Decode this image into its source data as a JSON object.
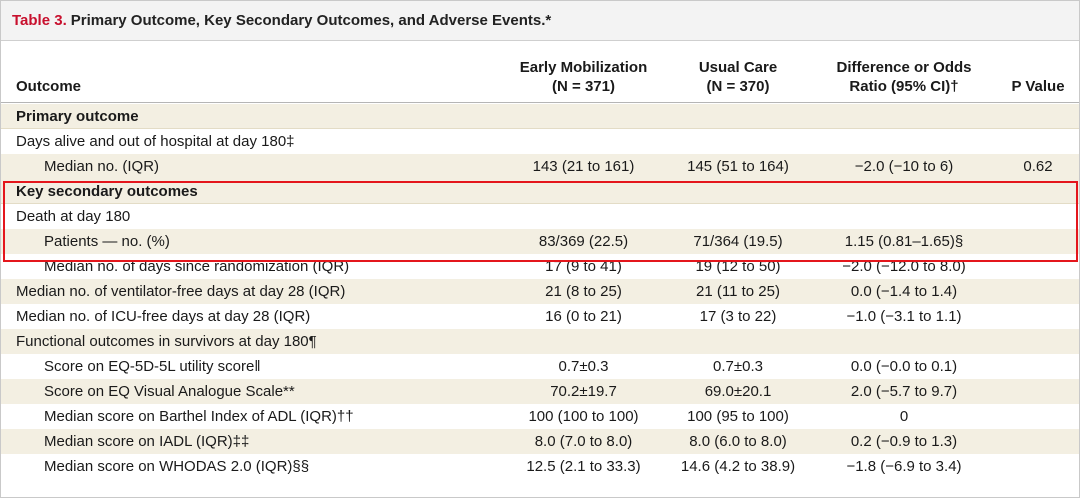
{
  "table": {
    "number": "Table 3.",
    "title": "Primary Outcome, Key Secondary Outcomes, and Adverse Events.*"
  },
  "header": {
    "outcome": "Outcome",
    "col1_line1": "Early Mobilization",
    "col1_line2": "(N = 371)",
    "col2_line1": "Usual Care",
    "col2_line2": "(N = 370)",
    "col3_line1": "Difference or Odds",
    "col3_line2": "Ratio (95% CI)†",
    "col4": "P Value"
  },
  "rows": [
    {
      "label": "Primary outcome",
      "early": "",
      "usual": "",
      "diff": "",
      "p": ""
    },
    {
      "label": "Days alive and out of hospital at day 180‡",
      "early": "",
      "usual": "",
      "diff": "",
      "p": ""
    },
    {
      "label": "Median no. (IQR)",
      "early": "143 (21 to 161)",
      "usual": "145 (51 to 164)",
      "diff": "−2.0 (−10 to 6)",
      "p": "0.62"
    },
    {
      "label": "Key secondary outcomes",
      "early": "",
      "usual": "",
      "diff": "",
      "p": ""
    },
    {
      "label": "Death at day 180",
      "early": "",
      "usual": "",
      "diff": "",
      "p": ""
    },
    {
      "label": "Patients — no. (%)",
      "early": "83/369 (22.5)",
      "usual": "71/364 (19.5)",
      "diff": "1.15 (0.81–1.65)§",
      "p": ""
    },
    {
      "label": "Median no. of days since randomization (IQR)",
      "early": "17 (9 to 41)",
      "usual": "19 (12 to 50)",
      "diff": "−2.0 (−12.0 to 8.0)",
      "p": ""
    },
    {
      "label": "Median no. of ventilator-free days at day 28 (IQR)",
      "early": "21 (8 to 25)",
      "usual": "21 (11 to 25)",
      "diff": "0.0 (−1.4 to 1.4)",
      "p": ""
    },
    {
      "label": "Median no. of ICU-free days at day 28 (IQR)",
      "early": "16 (0 to 21)",
      "usual": "17 (3 to 22)",
      "diff": "−1.0 (−3.1 to 1.1)",
      "p": ""
    },
    {
      "label": "Functional outcomes in survivors at day 180¶",
      "early": "",
      "usual": "",
      "diff": "",
      "p": ""
    },
    {
      "label": "Score on EQ-5D-5L utility score‖",
      "early": "0.7±0.3",
      "usual": "0.7±0.3",
      "diff": "0.0 (−0.0 to 0.1)",
      "p": ""
    },
    {
      "label": "Score on EQ Visual Analogue Scale**",
      "early": "70.2±19.7",
      "usual": "69.0±20.1",
      "diff": "2.0 (−5.7 to 9.7)",
      "p": ""
    },
    {
      "label": "Median score on Barthel Index of ADL (IQR)††",
      "early": "100 (100 to 100)",
      "usual": "100 (95 to 100)",
      "diff": "0",
      "p": ""
    },
    {
      "label": "Median score on IADL (IQR)‡‡",
      "early": "8.0 (7.0 to 8.0)",
      "usual": "8.0 (6.0 to 8.0)",
      "diff": "0.2 (−0.9 to 1.3)",
      "p": ""
    },
    {
      "label": "Median score on WHODAS 2.0 (IQR)§§",
      "early": "12.5 (2.1 to 33.3)",
      "usual": "14.6 (4.2 to 38.9)",
      "diff": "−1.8 (−6.9 to 3.4)",
      "p": ""
    }
  ]
}
